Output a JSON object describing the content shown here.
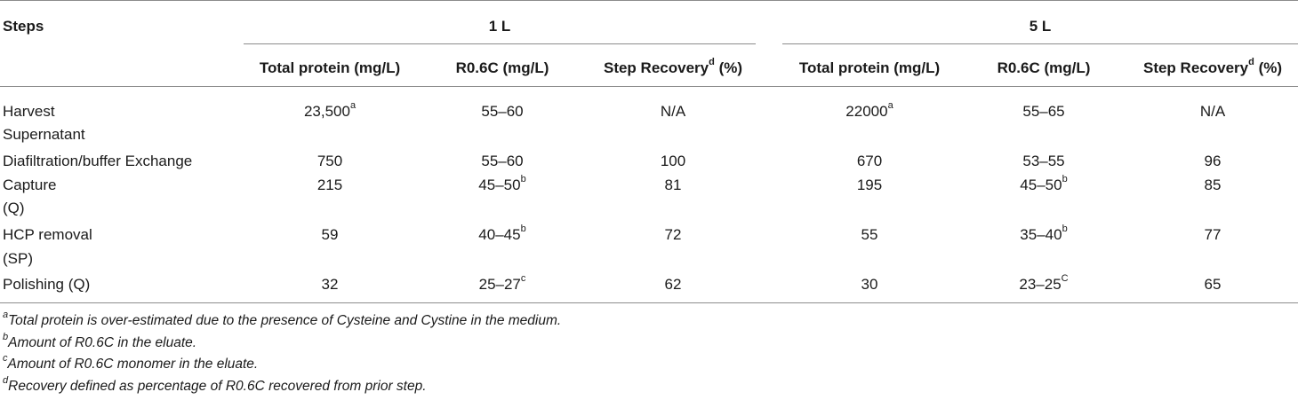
{
  "table": {
    "header": {
      "steps": "Steps",
      "groups": [
        "1 L",
        "5 L"
      ],
      "columns": [
        "Total protein (mg/L)",
        "R0.6C (mg/L)",
        "Step Recovery",
        "(%)"
      ],
      "recovery_note": "d"
    },
    "rows": [
      {
        "step": [
          "Harvest",
          "Supernatant"
        ],
        "l1": {
          "total": "23,500",
          "total_note": "a",
          "r06c": "55–60",
          "r06c_note": "",
          "recovery": "N/A"
        },
        "l5": {
          "total": "22000",
          "total_note": "a",
          "r06c": "55–65",
          "r06c_note": "",
          "recovery": "N/A"
        }
      },
      {
        "step": [
          "Diafiltration/buffer Exchange"
        ],
        "l1": {
          "total": "750",
          "total_note": "",
          "r06c": "55–60",
          "r06c_note": "",
          "recovery": "100"
        },
        "l5": {
          "total": "670",
          "total_note": "",
          "r06c": "53–55",
          "r06c_note": "",
          "recovery": "96"
        }
      },
      {
        "step": [
          "Capture",
          "(Q)"
        ],
        "l1": {
          "total": "215",
          "total_note": "",
          "r06c": "45–50",
          "r06c_note": "b",
          "recovery": "81"
        },
        "l5": {
          "total": "195",
          "total_note": "",
          "r06c": "45–50",
          "r06c_note": "b",
          "recovery": "85"
        }
      },
      {
        "step": [
          "HCP removal",
          "(SP)"
        ],
        "l1": {
          "total": "59",
          "total_note": "",
          "r06c": "40–45",
          "r06c_note": "b",
          "recovery": "72"
        },
        "l5": {
          "total": "55",
          "total_note": "",
          "r06c": "35–40",
          "r06c_note": "b",
          "recovery": "77"
        }
      },
      {
        "step": [
          "Polishing (Q)"
        ],
        "l1": {
          "total": "32",
          "total_note": "",
          "r06c": "25–27",
          "r06c_note": "c",
          "recovery": "62"
        },
        "l5": {
          "total": "30",
          "total_note": "",
          "r06c": "23–25",
          "r06c_note": "C",
          "recovery": "65"
        }
      }
    ]
  },
  "footnotes": [
    {
      "mark": "a",
      "text": "Total protein is over-estimated due to the presence of Cysteine and Cystine in the medium."
    },
    {
      "mark": "b",
      "text": "Amount of R0.6C in the eluate."
    },
    {
      "mark": "c",
      "text": "Amount of R0.6C monomer in the eluate."
    },
    {
      "mark": "d",
      "text": "Recovery defined as percentage of R0.6C recovered from prior step."
    }
  ]
}
